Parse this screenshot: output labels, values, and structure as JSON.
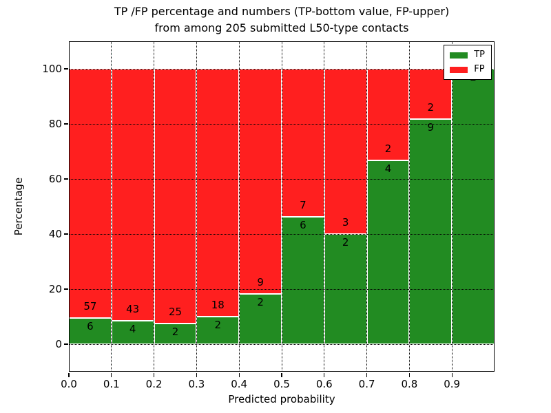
{
  "chart_data": {
    "type": "bar",
    "stacked": true,
    "title_lines": [
      "TP /FP percentage and numbers (TP-bottom value, FP-upper)",
      "from among 205 submitted L50-type contacts"
    ],
    "xlabel": "Predicted probability",
    "ylabel": "Percentage",
    "xlim": [
      0.0,
      1.0
    ],
    "ylim": [
      -10,
      110
    ],
    "bin_width": 0.1,
    "bin_starts": [
      0.0,
      0.1,
      0.2,
      0.3,
      0.4,
      0.5,
      0.6,
      0.7,
      0.8,
      0.9
    ],
    "x_ticks": [
      {
        "value": 0.0,
        "label": "0.0"
      },
      {
        "value": 0.1,
        "label": "0.1"
      },
      {
        "value": 0.2,
        "label": "0.2"
      },
      {
        "value": 0.3,
        "label": "0.3"
      },
      {
        "value": 0.4,
        "label": "0.4"
      },
      {
        "value": 0.5,
        "label": "0.5"
      },
      {
        "value": 0.6,
        "label": "0.6"
      },
      {
        "value": 0.7,
        "label": "0.7"
      },
      {
        "value": 0.8,
        "label": "0.8"
      },
      {
        "value": 0.9,
        "label": "0.9"
      }
    ],
    "y_ticks": [
      {
        "value": 0,
        "label": "0"
      },
      {
        "value": 20,
        "label": "20"
      },
      {
        "value": 40,
        "label": "40"
      },
      {
        "value": 60,
        "label": "60"
      },
      {
        "value": 80,
        "label": "80"
      },
      {
        "value": 100,
        "label": "100"
      }
    ],
    "series": [
      {
        "name": "TP",
        "color": "#228b22",
        "counts": [
          6,
          4,
          2,
          2,
          2,
          6,
          2,
          4,
          9,
          2
        ],
        "pct": [
          9.52,
          8.51,
          7.41,
          10.0,
          18.18,
          46.15,
          40.0,
          66.67,
          81.82,
          100.0
        ]
      },
      {
        "name": "FP",
        "color": "#ff1f1f",
        "counts": [
          57,
          43,
          25,
          18,
          9,
          7,
          3,
          2,
          2,
          0
        ],
        "pct": [
          90.48,
          91.49,
          92.59,
          90.0,
          81.82,
          53.85,
          60.0,
          33.33,
          18.18,
          0.0
        ]
      }
    ],
    "total_contacts": 205,
    "legend": {
      "position": "upper right",
      "entries": [
        {
          "label": "TP",
          "color": "#228b22"
        },
        {
          "label": "FP",
          "color": "#ff1f1f"
        }
      ]
    },
    "grid": {
      "linestyle": "dotted",
      "color": "#000000"
    },
    "bar_edge_color": "#ffffff"
  }
}
